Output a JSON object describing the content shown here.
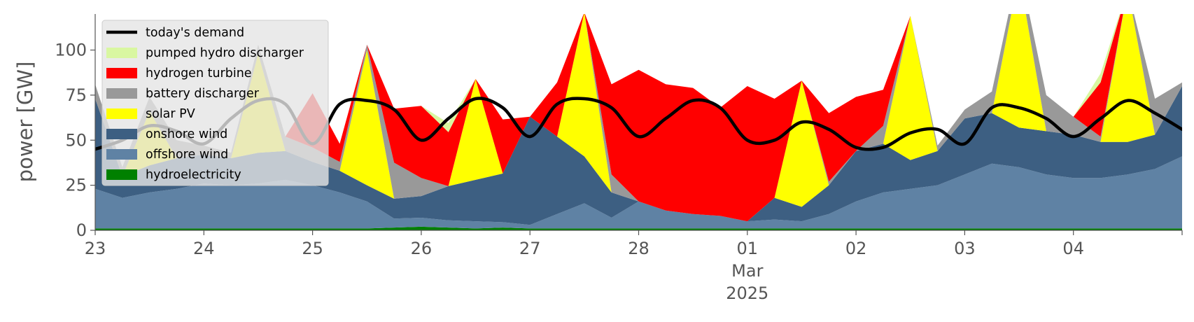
{
  "chart_data": {
    "type": "area",
    "title": "",
    "xlabel": "",
    "ylabel": "power [GW]",
    "ylim": [
      0,
      120
    ],
    "yticks": [
      0,
      25,
      50,
      75,
      100
    ],
    "x_range": [
      "2025-02-23",
      "2025-03-05"
    ],
    "x_ticks": [
      {
        "date": "2025-02-23",
        "label": "23"
      },
      {
        "date": "2025-02-24",
        "label": "24"
      },
      {
        "date": "2025-02-25",
        "label": "25"
      },
      {
        "date": "2025-02-26",
        "label": "26"
      },
      {
        "date": "2025-02-27",
        "label": "27"
      },
      {
        "date": "2025-02-28",
        "label": "28"
      },
      {
        "date": "2025-03-01",
        "label": "01"
      },
      {
        "date": "2025-03-02",
        "label": "02"
      },
      {
        "date": "2025-03-03",
        "label": "03"
      },
      {
        "date": "2025-03-04",
        "label": "04"
      }
    ],
    "x_sublabels": [
      "Mar",
      "2025"
    ],
    "grid": false,
    "legend_position": "top-left",
    "sample_times": [
      "2025-02-23 00:00",
      "2025-02-23 06:00",
      "2025-02-23 12:00",
      "2025-02-23 18:00",
      "2025-02-24 00:00",
      "2025-02-24 06:00",
      "2025-02-24 12:00",
      "2025-02-24 18:00",
      "2025-02-25 00:00",
      "2025-02-25 06:00",
      "2025-02-25 12:00",
      "2025-02-25 18:00",
      "2025-02-26 00:00",
      "2025-02-26 06:00",
      "2025-02-26 12:00",
      "2025-02-26 18:00",
      "2025-02-27 00:00",
      "2025-02-27 06:00",
      "2025-02-27 12:00",
      "2025-02-27 18:00",
      "2025-02-28 00:00",
      "2025-02-28 06:00",
      "2025-02-28 12:00",
      "2025-02-28 18:00",
      "2025-03-01 00:00",
      "2025-03-01 06:00",
      "2025-03-01 12:00",
      "2025-03-01 18:00",
      "2025-03-02 00:00",
      "2025-03-02 06:00",
      "2025-03-02 12:00",
      "2025-03-02 18:00",
      "2025-03-03 00:00",
      "2025-03-03 06:00",
      "2025-03-03 12:00",
      "2025-03-03 18:00",
      "2025-03-04 00:00",
      "2025-03-04 06:00",
      "2025-03-04 12:00",
      "2025-03-04 18:00",
      "2025-03-05 00:00"
    ],
    "stacked_series": [
      {
        "name": "hydroelectricity",
        "color": "#008000",
        "values": [
          1,
          1,
          1,
          1,
          1,
          1,
          1,
          1,
          1,
          1,
          1,
          1.5,
          2,
          1.5,
          1,
          1.5,
          1,
          1,
          1,
          1,
          1,
          1,
          1,
          1,
          1,
          1,
          1,
          1,
          1,
          1,
          1,
          1,
          1,
          1,
          1,
          1,
          1,
          1,
          1,
          1,
          1
        ]
      },
      {
        "name": "offshore wind",
        "color": "#5f82a4",
        "values": [
          22,
          17,
          20,
          22,
          25,
          24,
          25,
          27,
          24,
          20,
          15,
          5,
          5,
          4,
          4,
          3,
          2,
          8,
          14,
          6,
          15,
          10,
          8,
          7,
          4,
          5,
          4,
          8,
          15,
          20,
          22,
          24,
          30,
          36,
          34,
          30,
          28,
          28,
          30,
          33,
          40
        ]
      },
      {
        "name": "onshore wind",
        "color": "#3d5f82",
        "values": [
          50,
          12,
          15,
          17,
          16,
          15,
          17,
          16,
          13,
          12,
          9,
          11,
          12,
          19,
          23,
          27,
          60,
          43,
          26,
          14,
          0,
          0,
          0,
          0,
          0,
          12,
          8,
          16,
          28,
          27,
          16,
          19,
          31,
          28,
          22,
          24,
          24,
          20,
          18,
          19,
          39
        ]
      },
      {
        "name": "solar PV",
        "color": "#ffff00",
        "values": [
          0,
          0,
          30,
          0,
          0,
          0,
          55,
          0,
          0,
          0,
          75,
          0,
          0,
          0,
          56,
          0,
          0,
          0,
          80,
          0,
          0,
          0,
          0,
          0,
          0,
          0,
          70,
          0,
          0,
          0,
          80,
          0,
          0,
          0,
          85,
          0,
          0,
          0,
          85,
          0,
          0
        ]
      },
      {
        "name": "battery discharger",
        "color": "#999999",
        "values": [
          8,
          5,
          8,
          10,
          5,
          3,
          5,
          8,
          8,
          5,
          3,
          20,
          10,
          0,
          0,
          0,
          0,
          0,
          0,
          10,
          0,
          0,
          0,
          0,
          0,
          0,
          0,
          2,
          0,
          10,
          0,
          3,
          5,
          12,
          5,
          20,
          10,
          3,
          0,
          20,
          2
        ]
      },
      {
        "name": "hydrogen turbine",
        "color": "#ff0000",
        "values": [
          0,
          0,
          0,
          0,
          0,
          0,
          0,
          0,
          30,
          10,
          0,
          30,
          40,
          30,
          0,
          30,
          0,
          30,
          0,
          50,
          73,
          70,
          70,
          60,
          75,
          55,
          0,
          38,
          30,
          20,
          0,
          0,
          0,
          0,
          0,
          0,
          0,
          30,
          0,
          0,
          0
        ]
      },
      {
        "name": "pumped hydro discharger",
        "color": "#d9f7a1",
        "values": [
          0,
          0,
          0,
          0,
          0,
          0,
          0,
          0,
          0,
          0,
          0,
          0,
          0,
          5,
          0,
          0,
          0,
          0,
          0,
          0,
          0,
          0,
          0,
          0,
          0,
          0,
          0,
          0,
          0,
          0,
          0,
          0,
          0,
          0,
          0,
          0,
          0,
          5,
          0,
          0,
          0
        ]
      }
    ],
    "line_series": [
      {
        "name": "today's demand",
        "color": "#000000",
        "values": [
          45,
          50,
          58,
          55,
          48,
          62,
          72,
          70,
          48,
          70,
          72,
          67,
          50,
          62,
          73,
          68,
          52,
          70,
          73,
          68,
          52,
          62,
          72,
          68,
          50,
          50,
          60,
          56,
          46,
          46,
          54,
          56,
          48,
          68,
          68,
          62,
          52,
          62,
          72,
          65,
          56
        ]
      }
    ],
    "legend": [
      {
        "label": "today's demand",
        "color": "#000000",
        "kind": "line"
      },
      {
        "label": "pumped hydro discharger",
        "color": "#d9f7a1",
        "kind": "patch"
      },
      {
        "label": "hydrogen turbine",
        "color": "#ff0000",
        "kind": "patch"
      },
      {
        "label": "battery discharger",
        "color": "#999999",
        "kind": "patch"
      },
      {
        "label": "solar PV",
        "color": "#ffff00",
        "kind": "patch"
      },
      {
        "label": "onshore wind",
        "color": "#3d5f82",
        "kind": "patch"
      },
      {
        "label": "offshore wind",
        "color": "#5f82a4",
        "kind": "patch"
      },
      {
        "label": "hydroelectricity",
        "color": "#008000",
        "kind": "patch"
      }
    ]
  }
}
